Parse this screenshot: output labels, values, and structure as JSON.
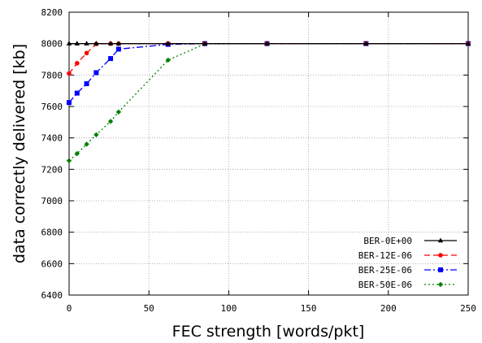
{
  "chart_data": {
    "type": "line",
    "xlabel": "FEC strength [words/pkt]",
    "ylabel": "data correctly delivered [kb]",
    "xlim": [
      0,
      250
    ],
    "ylim": [
      6400,
      8200
    ],
    "xticks": [
      0,
      50,
      100,
      150,
      200,
      250
    ],
    "yticks": [
      6400,
      6600,
      6800,
      7000,
      7200,
      7400,
      7600,
      7800,
      8000,
      8200
    ],
    "grid": true,
    "legend_position": "bottom-right",
    "series": [
      {
        "name": "BER-0E+00",
        "color": "#000000",
        "dash": "solid",
        "marker": "triangle",
        "x": [
          0,
          5,
          11,
          17,
          26,
          31,
          62,
          85,
          124,
          186,
          250
        ],
        "y": [
          8000,
          8000,
          8000,
          8000,
          8000,
          8000,
          8000,
          8000,
          8000,
          8000,
          8000
        ]
      },
      {
        "name": "BER-12E-06",
        "color": "#ff0000",
        "dash": "dashed",
        "marker": "circle",
        "x": [
          0,
          5,
          11,
          17,
          26,
          31,
          62,
          85,
          124,
          186,
          250
        ],
        "y": [
          7810,
          7875,
          7940,
          7998,
          8000,
          8000,
          8000,
          8000,
          8000,
          8000,
          8000
        ]
      },
      {
        "name": "BER-25E-06",
        "color": "#0000ff",
        "dash": "dash-dot",
        "marker": "square",
        "x": [
          0,
          5,
          11,
          17,
          26,
          31,
          62,
          85,
          124,
          186,
          250
        ],
        "y": [
          7625,
          7685,
          7745,
          7815,
          7905,
          7965,
          7995,
          8000,
          8000,
          8000,
          8000
        ]
      },
      {
        "name": "BER-50E-06",
        "color": "#008000",
        "dash": "dotted",
        "marker": "diamond",
        "x": [
          0,
          5,
          11,
          17,
          26,
          31,
          62,
          85,
          124,
          186,
          250
        ],
        "y": [
          7255,
          7300,
          7360,
          7420,
          7505,
          7565,
          7895,
          7998,
          8000,
          8000,
          8000
        ]
      }
    ]
  }
}
